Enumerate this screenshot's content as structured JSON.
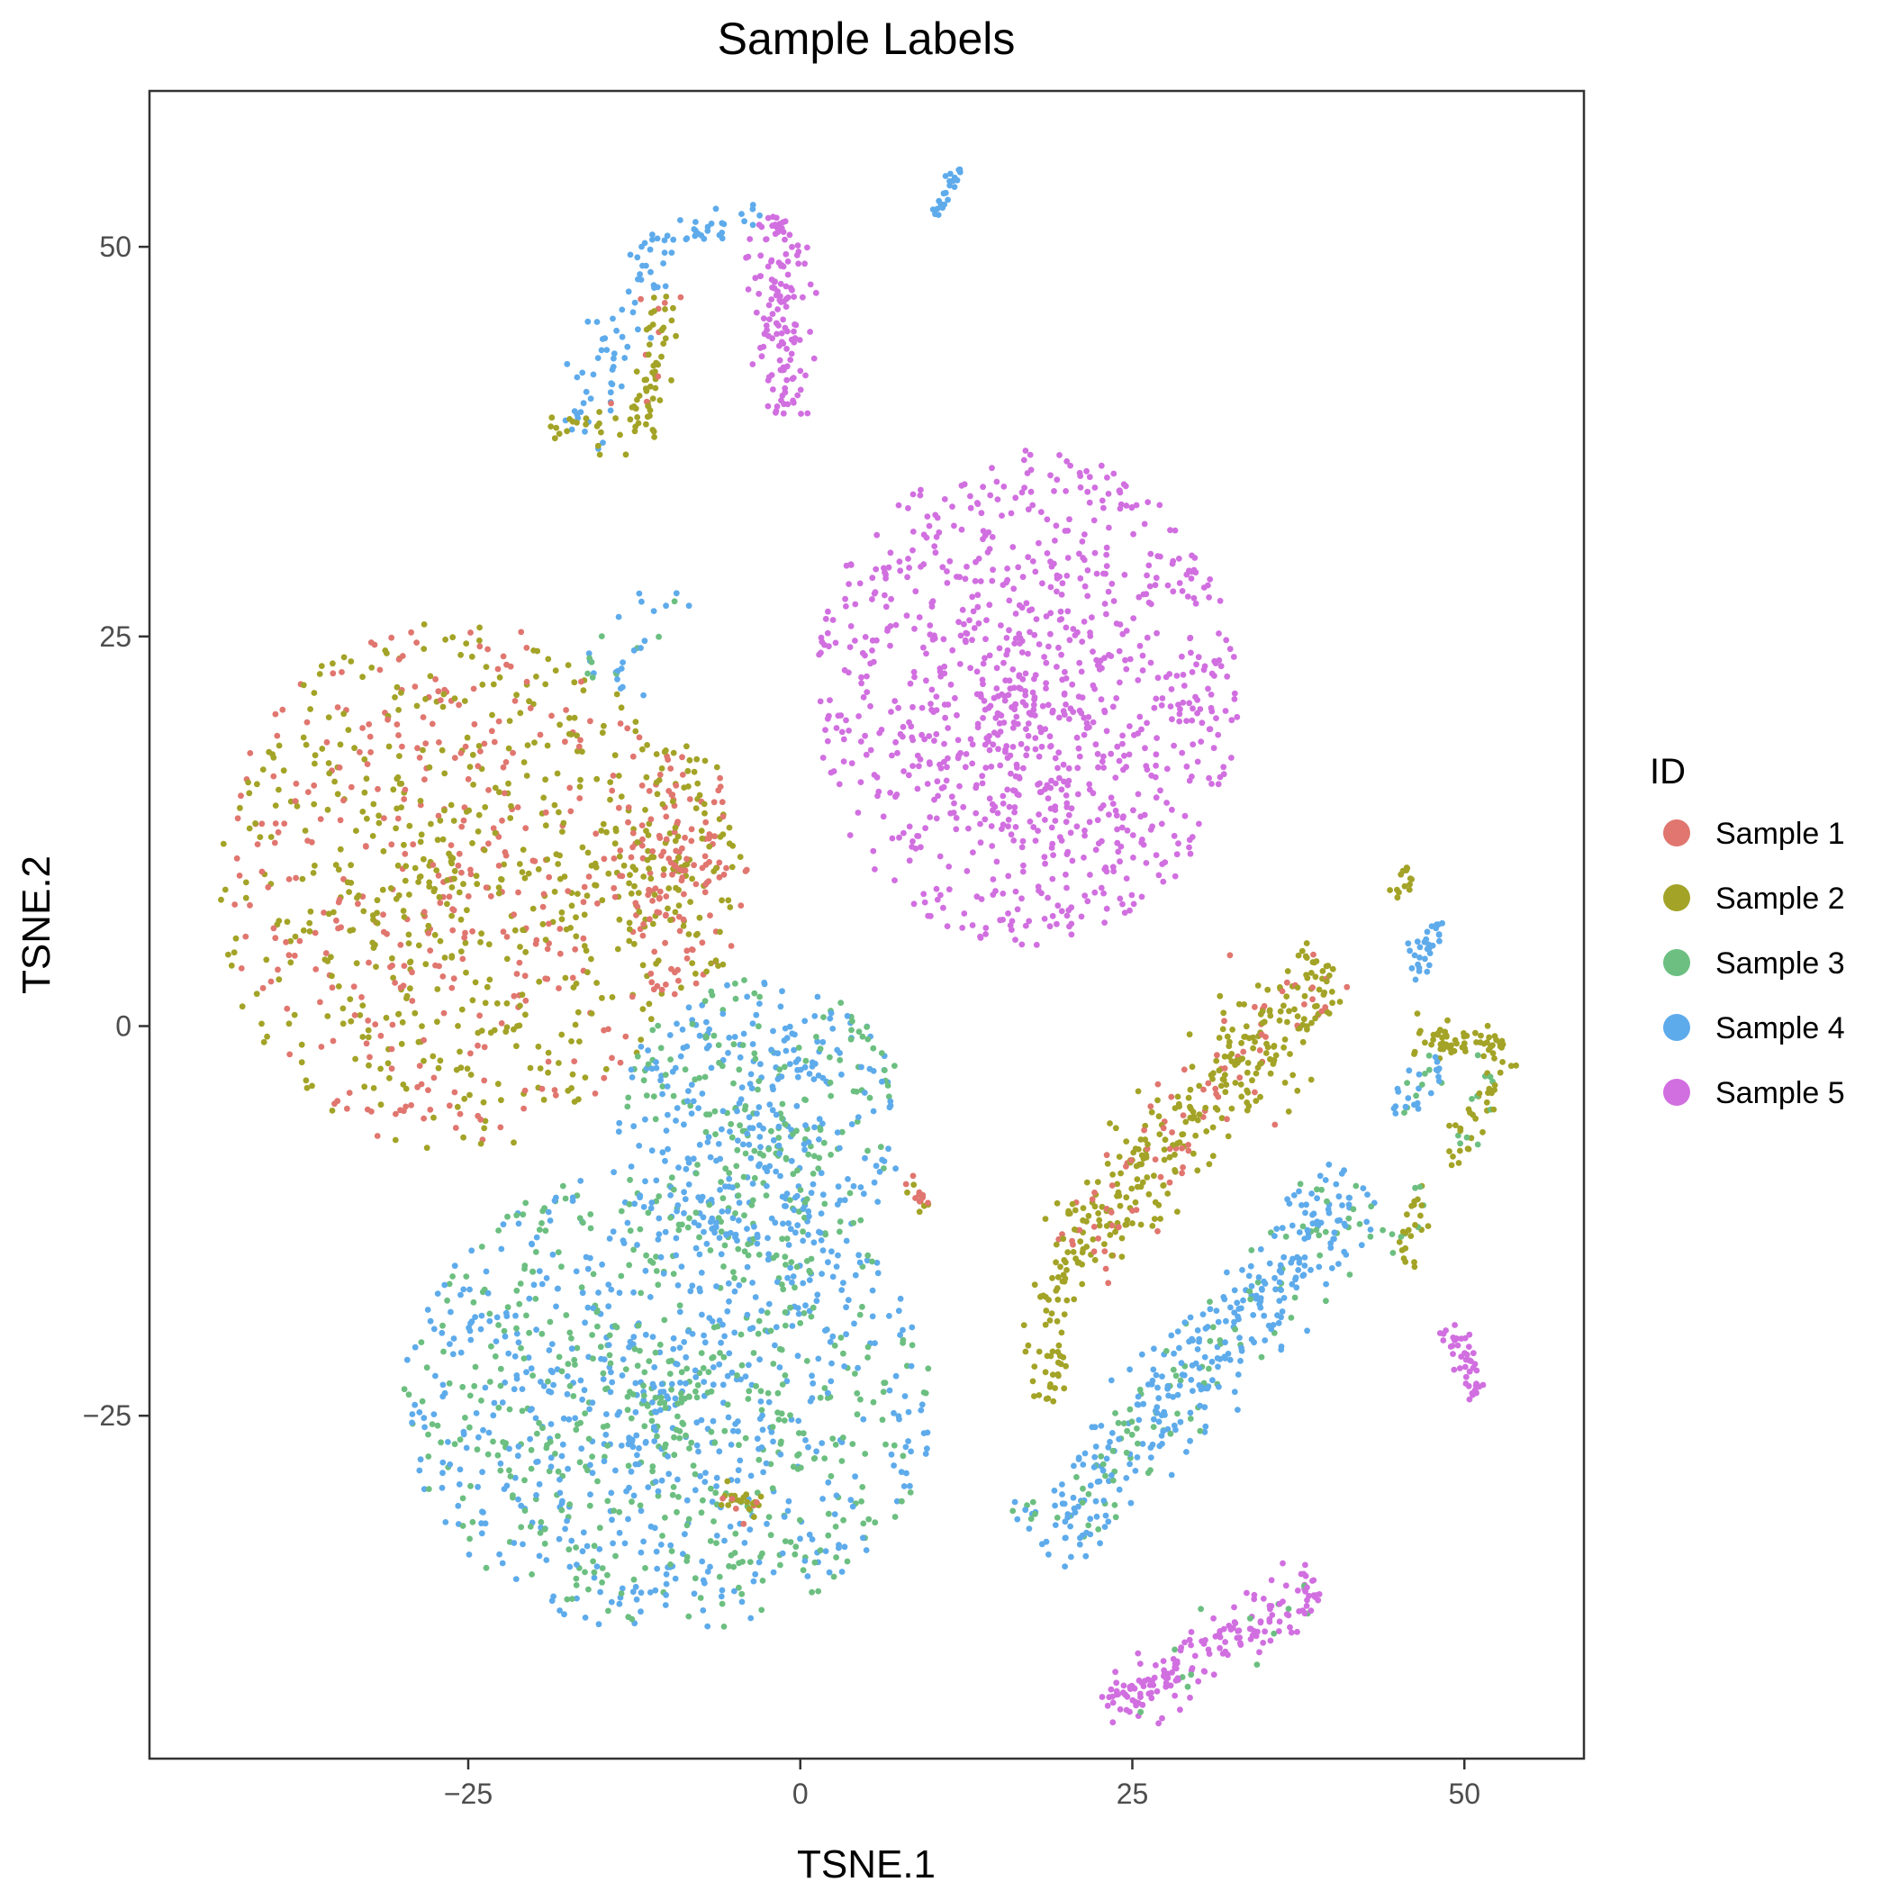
{
  "chart_data": {
    "type": "scatter",
    "title": "Sample Labels",
    "xlabel": "TSNE.1",
    "ylabel": "TSNE.2",
    "xlim": [
      -49,
      59
    ],
    "ylim": [
      -47,
      60
    ],
    "x_ticks": [
      -25,
      0,
      25,
      50
    ],
    "y_ticks": [
      -25,
      0,
      25,
      50
    ],
    "x_tick_labels": [
      "−25",
      "0",
      "25",
      "50"
    ],
    "y_tick_labels": [
      "−25",
      "0",
      "25",
      "50"
    ],
    "grid": false,
    "legend": {
      "title": "ID",
      "position": "right"
    },
    "series": [
      {
        "name": "Sample 1",
        "color": "#E0766F"
      },
      {
        "name": "Sample 2",
        "color": "#A3A327"
      },
      {
        "name": "Sample 3",
        "color": "#6CBF80"
      },
      {
        "name": "Sample 4",
        "color": "#5EABEB"
      },
      {
        "name": "Sample 5",
        "color": "#D16FE0"
      }
    ],
    "clusters": [
      {
        "cx": -26,
        "cy": 9,
        "rx": 18,
        "ry": 17,
        "n": 900,
        "mix": [
          [
            1,
            0.4
          ],
          [
            2,
            0.6
          ]
        ]
      },
      {
        "cx": -9,
        "cy": 10,
        "rx": 5,
        "ry": 8,
        "n": 220,
        "mix": [
          [
            1,
            0.5
          ],
          [
            2,
            0.5
          ]
        ]
      },
      {
        "cx": 17,
        "cy": 21,
        "rx": 16,
        "ry": 16,
        "n": 1000,
        "mix": [
          [
            5,
            1.0
          ]
        ]
      },
      {
        "cx": -3,
        "cy": -6,
        "rx": 11,
        "ry": 9,
        "n": 480,
        "mix": [
          [
            4,
            0.6
          ],
          [
            3,
            0.4
          ]
        ]
      },
      {
        "cx": -10,
        "cy": -24,
        "rx": 20,
        "ry": 15,
        "n": 1200,
        "mix": [
          [
            4,
            0.58
          ],
          [
            3,
            0.42
          ]
        ]
      }
    ],
    "strands": [
      {
        "from": [
          -17,
          38
        ],
        "to": [
          -10,
          51
        ],
        "n": 70,
        "spread": 1.2,
        "mix": [
          [
            4,
            1.0
          ]
        ]
      },
      {
        "from": [
          -12,
          38
        ],
        "to": [
          -10,
          47
        ],
        "n": 60,
        "spread": 0.9,
        "mix": [
          [
            2,
            0.85
          ],
          [
            1,
            0.15
          ]
        ]
      },
      {
        "from": [
          -19,
          38
        ],
        "to": [
          -12,
          39
        ],
        "n": 25,
        "spread": 0.6,
        "mix": [
          [
            2,
            1.0
          ]
        ]
      },
      {
        "from": [
          -9,
          51
        ],
        "to": [
          -3,
          52
        ],
        "n": 25,
        "spread": 0.6,
        "mix": [
          [
            4,
            1.0
          ]
        ]
      },
      {
        "from": [
          -2,
          52
        ],
        "to": [
          -1,
          39
        ],
        "n": 140,
        "spread": 1.0,
        "mix": [
          [
            5,
            1.0
          ]
        ]
      },
      {
        "from": [
          10,
          52
        ],
        "to": [
          12,
          55
        ],
        "n": 22,
        "spread": 0.3,
        "mix": [
          [
            4,
            1.0
          ]
        ]
      },
      {
        "from": [
          -16,
          22
        ],
        "to": [
          -9,
          28
        ],
        "n": 30,
        "spread": 1.2,
        "mix": [
          [
            4,
            0.6
          ],
          [
            3,
            0.4
          ]
        ]
      },
      {
        "from": [
          20,
          -15
        ],
        "to": [
          40,
          4
        ],
        "n": 380,
        "spread": 1.6,
        "mix": [
          [
            2,
            0.75
          ],
          [
            1,
            0.25
          ]
        ]
      },
      {
        "from": [
          18,
          -24
        ],
        "to": [
          20,
          -15
        ],
        "n": 60,
        "spread": 0.9,
        "mix": [
          [
            2,
            1.0
          ]
        ]
      },
      {
        "from": [
          18,
          -34
        ],
        "to": [
          42,
          -10
        ],
        "n": 420,
        "spread": 1.6,
        "mix": [
          [
            4,
            0.75
          ],
          [
            3,
            0.25
          ]
        ]
      },
      {
        "from": [
          46,
          -1
        ],
        "to": [
          53,
          -1
        ],
        "n": 60,
        "spread": 0.5,
        "mix": [
          [
            2,
            1.0
          ]
        ]
      },
      {
        "from": [
          49,
          -9
        ],
        "to": [
          53,
          -2
        ],
        "n": 45,
        "spread": 0.6,
        "mix": [
          [
            2,
            0.7
          ],
          [
            3,
            0.3
          ]
        ]
      },
      {
        "from": [
          45,
          -6
        ],
        "to": [
          48,
          -2
        ],
        "n": 30,
        "spread": 0.6,
        "mix": [
          [
            4,
            0.6
          ],
          [
            3,
            0.4
          ]
        ]
      },
      {
        "from": [
          46,
          3
        ],
        "to": [
          48,
          7
        ],
        "n": 30,
        "spread": 0.5,
        "mix": [
          [
            4,
            1.0
          ]
        ]
      },
      {
        "from": [
          45,
          8
        ],
        "to": [
          46,
          10
        ],
        "n": 14,
        "spread": 0.4,
        "mix": [
          [
            2,
            1.0
          ]
        ]
      },
      {
        "from": [
          45,
          -15
        ],
        "to": [
          47,
          -10
        ],
        "n": 30,
        "spread": 0.6,
        "mix": [
          [
            2,
            0.7
          ],
          [
            3,
            0.3
          ]
        ]
      },
      {
        "from": [
          49,
          -19
        ],
        "to": [
          51,
          -24
        ],
        "n": 45,
        "spread": 0.5,
        "mix": [
          [
            5,
            1.0
          ]
        ]
      },
      {
        "from": [
          23,
          -44
        ],
        "to": [
          39,
          -36
        ],
        "n": 190,
        "spread": 0.9,
        "mix": [
          [
            5,
            0.92
          ],
          [
            3,
            0.08
          ]
        ]
      },
      {
        "from": [
          -6,
          -30
        ],
        "to": [
          -3,
          -31
        ],
        "n": 25,
        "spread": 0.5,
        "mix": [
          [
            2,
            0.7
          ],
          [
            1,
            0.3
          ]
        ]
      },
      {
        "from": [
          8,
          -10
        ],
        "to": [
          10,
          -12
        ],
        "n": 15,
        "spread": 0.5,
        "mix": [
          [
            1,
            0.6
          ],
          [
            2,
            0.4
          ]
        ]
      }
    ]
  }
}
